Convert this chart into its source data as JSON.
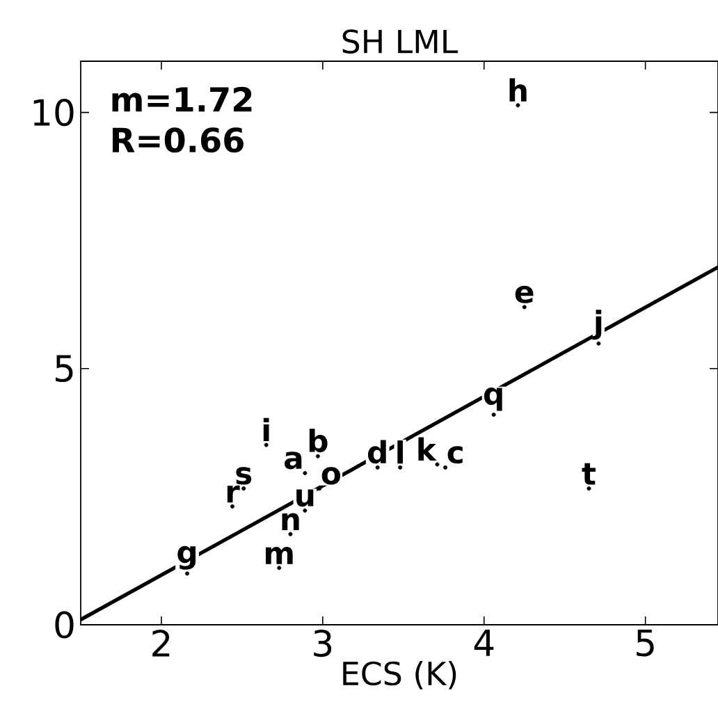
{
  "chart_data": {
    "type": "scatter",
    "title": "SH LML",
    "xlabel": "ECS (K)",
    "xlim": [
      1.5,
      5.45
    ],
    "ylim": [
      0,
      11
    ],
    "xticks": [
      2,
      3,
      4,
      5
    ],
    "yticks": [
      0,
      5,
      10
    ],
    "grid": false,
    "series": [
      {
        "color": "#000000",
        "x": [
          4.21,
          4.25,
          4.71,
          4.06,
          4.65,
          3.71,
          3.76,
          3.34,
          3.48,
          2.65,
          2.97,
          2.89,
          2.98,
          2.51,
          2.44,
          2.89,
          2.8,
          2.73,
          2.16
        ],
        "values": [
          10.14,
          6.2,
          5.49,
          4.1,
          2.66,
          3.13,
          3.07,
          3.07,
          3.07,
          3.51,
          3.29,
          2.96,
          2.66,
          2.66,
          2.31,
          2.23,
          1.77,
          1.11,
          1.0
        ],
        "value_labels": [
          "h",
          "e",
          "j",
          "q",
          "t",
          "k",
          "c",
          "d",
          "l",
          "i",
          "b",
          "a",
          "o",
          "s",
          "r",
          "u",
          "n",
          "m",
          "g"
        ]
      },
      {
        "type": "line",
        "color": "#000000",
        "x": [
          1.5,
          5.45
        ],
        "values": [
          0.1,
          6.98
        ]
      }
    ],
    "annotations": [
      "m=1.72",
      "R=0.66"
    ]
  }
}
